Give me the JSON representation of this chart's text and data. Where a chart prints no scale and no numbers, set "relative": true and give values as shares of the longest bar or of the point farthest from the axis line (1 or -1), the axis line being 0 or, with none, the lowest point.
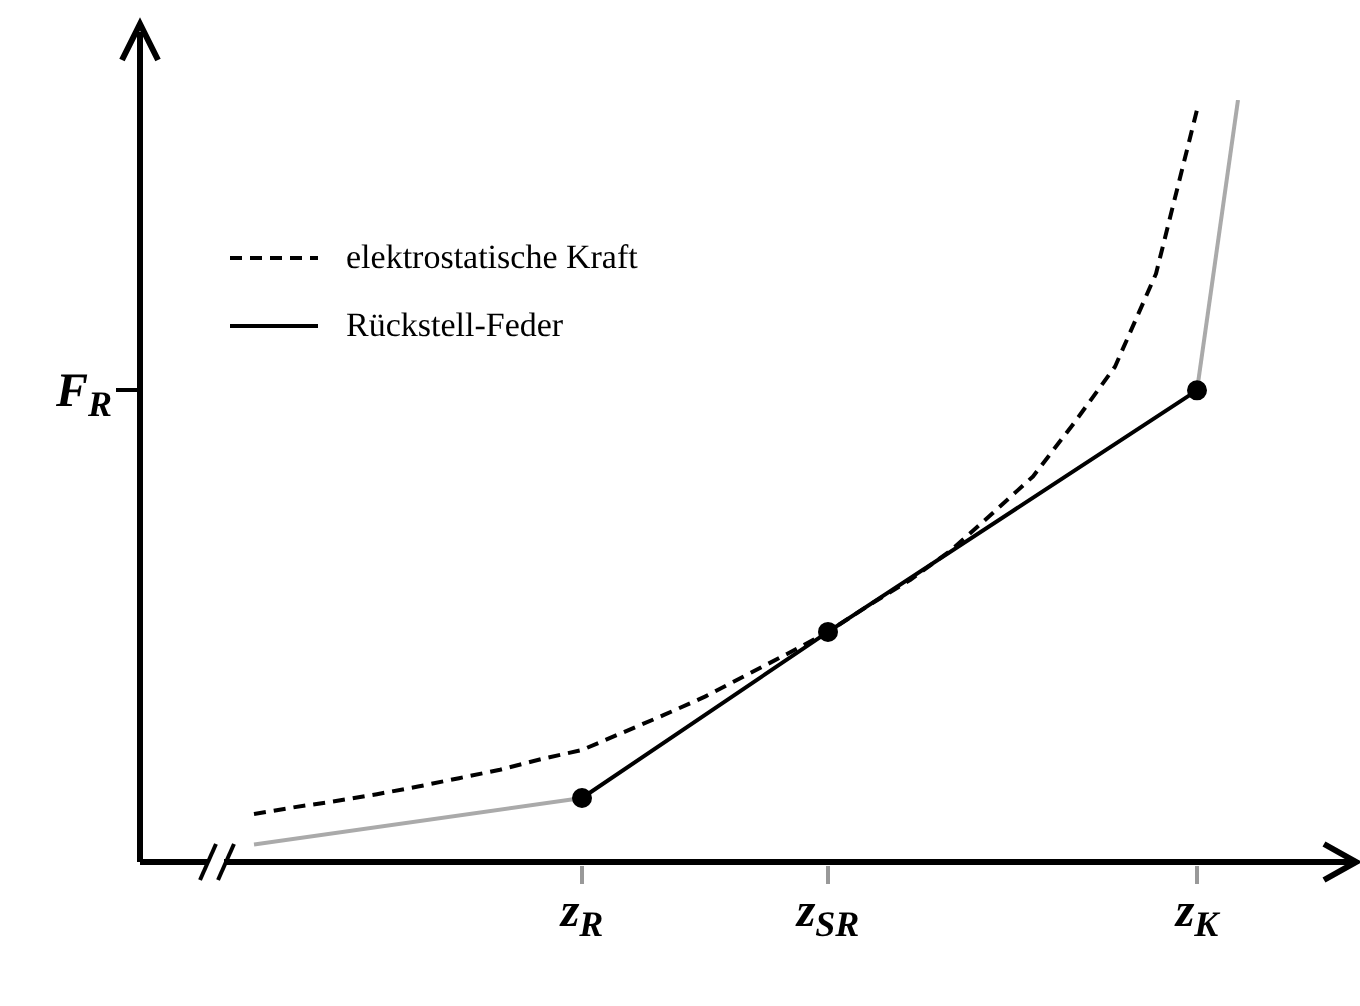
{
  "chart_data": {
    "type": "line",
    "relative": true,
    "legend": "top left",
    "categories": [
      null,
      null,
      null,
      null,
      null,
      null,
      null,
      null,
      "z$_{R}$",
      null,
      null,
      null,
      null,
      null,
      "z$_{SR}$",
      null,
      null,
      null,
      null,
      null,
      null,
      null,
      null,
      "z$_{K}$",
      null
    ],
    "annotations": [
      "F$_{R}$"
    ],
    "series": [
      {
        "name": "elektrostatische Kraft",
        "color": "#000000",
        "line_style": "dashed",
        "marker": "none",
        "values": [
          0.063,
          0.072,
          0.08,
          0.089,
          0.099,
          0.11,
          0.121,
          0.135,
          0.147,
          0.17,
          0.193,
          0.217,
          0.245,
          0.273,
          0.302,
          0.337,
          0.37,
          0.409,
          0.457,
          0.506,
          0.576,
          0.65,
          0.772,
          0.987,
          null
        ]
      },
      {
        "color": "#aaaaaa",
        "line_style": "solid",
        "marker": "none",
        "values": [
          0.023,
          null,
          null,
          null,
          null,
          null,
          null,
          null,
          0.084,
          null,
          null,
          null,
          null,
          null,
          null,
          null,
          null,
          null,
          null,
          null,
          null,
          null,
          null,
          null,
          null
        ]
      },
      {
        "color": "#aaaaaa",
        "line_style": "solid",
        "marker": "none",
        "values": [
          null,
          null,
          null,
          null,
          null,
          null,
          null,
          null,
          null,
          null,
          null,
          null,
          null,
          null,
          null,
          null,
          null,
          null,
          null,
          null,
          null,
          null,
          null,
          0.619,
          1.0
        ]
      },
      {
        "name": "Rückstell-Feder",
        "color": "#000000",
        "line_style": "solid",
        "marker": "circle",
        "values": [
          null,
          null,
          null,
          null,
          null,
          null,
          null,
          null,
          0.084,
          null,
          null,
          null,
          null,
          null,
          0.302,
          null,
          null,
          null,
          null,
          null,
          null,
          null,
          null,
          0.619,
          null
        ]
      }
    ]
  }
}
